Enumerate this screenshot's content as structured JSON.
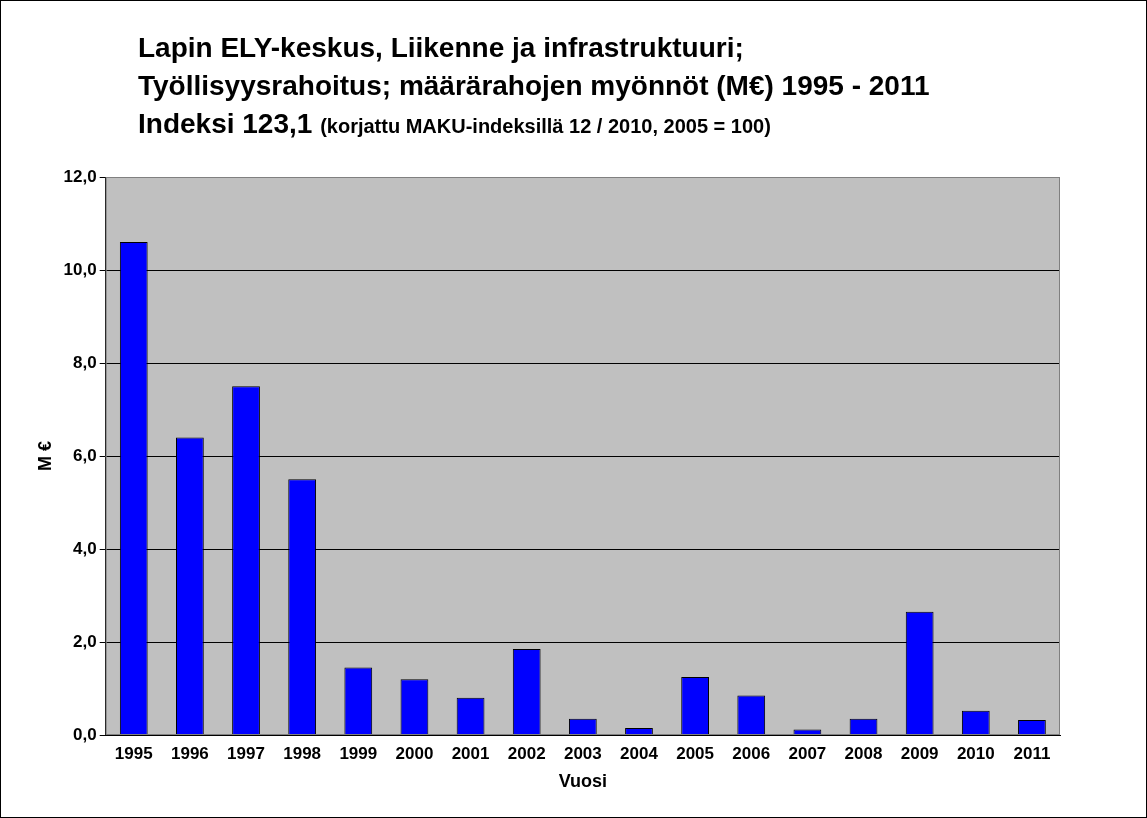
{
  "chart_data": {
    "type": "bar",
    "title": [
      "Lapin ELY-keskus, Liikenne ja infrastruktuuri;",
      "Työllisyysrahoitus; määrärahojen myönnöt (M€) 1995 - 2011",
      "Indeksi 123,1"
    ],
    "subtitle": "(korjattu MAKU-indeksillä 12 / 2010, 2005 = 100)",
    "x_label": "Vuosi",
    "y_label": "M €",
    "categories": [
      "1995",
      "1996",
      "1997",
      "1998",
      "1999",
      "2000",
      "2001",
      "2002",
      "2003",
      "2004",
      "2005",
      "2006",
      "2007",
      "2008",
      "2009",
      "2010",
      "2011"
    ],
    "values": [
      10.6,
      6.4,
      7.5,
      5.5,
      1.45,
      1.2,
      0.8,
      1.85,
      0.35,
      0.15,
      1.25,
      0.85,
      0.12,
      0.35,
      2.65,
      0.52,
      0.32
    ],
    "color": "#0000ff",
    "ylim": [
      0,
      12
    ],
    "yticks": [
      {
        "value": 0,
        "label": "0,0"
      },
      {
        "value": 2,
        "label": "2,0"
      },
      {
        "value": 4,
        "label": "4,0"
      },
      {
        "value": 6,
        "label": "6,0"
      },
      {
        "value": 8,
        "label": "8,0"
      },
      {
        "value": 10,
        "label": "10,0"
      },
      {
        "value": 12,
        "label": "12,0"
      }
    ],
    "grid": true
  }
}
